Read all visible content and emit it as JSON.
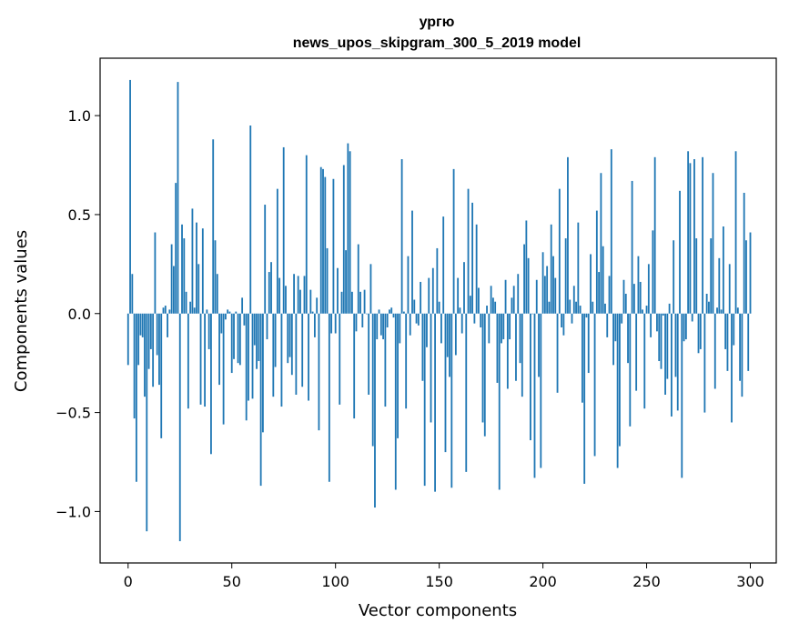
{
  "chart_data": {
    "type": "bar",
    "title": "ургю",
    "subtitle": "news_upos_skipgram_300_5_2019 model",
    "xlabel": "Vector components",
    "ylabel": "Components values",
    "xlim": [
      -13.5,
      312.5
    ],
    "ylim": [
      -1.26,
      1.29
    ],
    "xticks": [
      0,
      50,
      100,
      150,
      200,
      250,
      300
    ],
    "xtick_labels": [
      "0",
      "50",
      "100",
      "150",
      "200",
      "250",
      "300"
    ],
    "yticks": [
      -1.0,
      -0.5,
      0.0,
      0.5,
      1.0
    ],
    "ytick_labels": [
      "−1.0",
      "−0.5",
      "0.0",
      "0.5",
      "1.0"
    ],
    "bar_color": "#1f77b4",
    "grid": false,
    "values": [
      -0.26,
      1.18,
      0.2,
      -0.53,
      -0.85,
      -0.26,
      -0.11,
      -0.12,
      -0.42,
      -1.1,
      -0.28,
      -0.18,
      -0.37,
      0.41,
      -0.21,
      -0.36,
      -0.63,
      0.03,
      0.04,
      -0.12,
      0.02,
      0.35,
      0.24,
      0.66,
      1.17,
      -1.15,
      0.45,
      0.38,
      0.11,
      -0.48,
      0.06,
      0.53,
      0.03,
      0.46,
      0.25,
      -0.46,
      0.43,
      -0.47,
      0.02,
      -0.18,
      -0.71,
      0.88,
      0.37,
      0.2,
      -0.36,
      -0.1,
      -0.56,
      -0.03,
      0.02,
      0.01,
      -0.3,
      -0.23,
      0.01,
      -0.25,
      -0.26,
      0.08,
      -0.06,
      -0.54,
      -0.44,
      0.95,
      -0.43,
      -0.16,
      -0.28,
      -0.24,
      -0.87,
      -0.6,
      0.55,
      -0.13,
      0.21,
      0.26,
      -0.42,
      -0.27,
      0.63,
      0.18,
      -0.47,
      0.84,
      0.14,
      -0.25,
      -0.22,
      -0.31,
      0.2,
      -0.41,
      0.19,
      0.12,
      -0.37,
      0.19,
      0.8,
      -0.44,
      0.12,
      0.01,
      -0.12,
      0.08,
      -0.59,
      0.74,
      0.73,
      0.69,
      0.33,
      -0.85,
      -0.1,
      0.68,
      -0.1,
      0.23,
      -0.46,
      0.11,
      0.75,
      0.32,
      0.86,
      0.82,
      0.11,
      -0.53,
      -0.09,
      0.35,
      0.11,
      -0.07,
      0.12,
      0.0,
      -0.41,
      0.25,
      -0.67,
      -0.98,
      -0.13,
      0.02,
      -0.11,
      -0.13,
      -0.47,
      -0.07,
      0.02,
      0.03,
      -0.02,
      -0.89,
      -0.63,
      -0.15,
      0.78,
      0.01,
      -0.48,
      0.29,
      -0.11,
      0.52,
      0.07,
      -0.05,
      -0.06,
      0.16,
      -0.34,
      -0.87,
      -0.17,
      0.18,
      -0.55,
      0.23,
      -0.9,
      0.33,
      0.06,
      -0.15,
      0.49,
      -0.7,
      -0.22,
      -0.32,
      -0.88,
      0.73,
      -0.21,
      0.18,
      0.03,
      -0.1,
      0.26,
      -0.8,
      0.63,
      0.09,
      0.56,
      -0.05,
      0.45,
      0.13,
      -0.07,
      -0.55,
      -0.62,
      0.04,
      -0.15,
      0.14,
      0.08,
      0.06,
      -0.35,
      -0.89,
      -0.15,
      -0.13,
      0.17,
      -0.38,
      -0.13,
      0.08,
      0.14,
      -0.34,
      0.2,
      -0.25,
      -0.42,
      0.35,
      0.47,
      0.28,
      -0.64,
      0.0,
      -0.83,
      0.17,
      -0.32,
      -0.78,
      0.31,
      0.19,
      0.24,
      0.06,
      0.45,
      0.29,
      0.18,
      -0.4,
      0.63,
      -0.07,
      -0.11,
      0.38,
      0.79,
      0.07,
      -0.05,
      0.14,
      0.06,
      0.46,
      0.04,
      -0.45,
      -0.86,
      -0.02,
      -0.3,
      0.3,
      0.06,
      -0.72,
      0.52,
      0.21,
      0.71,
      0.34,
      0.05,
      -0.12,
      0.19,
      0.83,
      -0.26,
      -0.14,
      -0.78,
      -0.67,
      -0.05,
      0.17,
      0.1,
      -0.25,
      -0.57,
      0.67,
      0.15,
      -0.39,
      0.29,
      0.16,
      0.02,
      -0.48,
      0.04,
      0.25,
      -0.12,
      0.42,
      0.79,
      -0.09,
      -0.24,
      -0.28,
      -0.01,
      -0.41,
      -0.33,
      0.05,
      -0.52,
      0.37,
      -0.32,
      -0.49,
      0.62,
      -0.83,
      -0.14,
      -0.13,
      0.82,
      0.76,
      -0.04,
      0.78,
      0.38,
      -0.2,
      -0.18,
      0.79,
      -0.5,
      0.1,
      0.06,
      0.38,
      0.71,
      -0.38,
      0.03,
      0.28,
      0.02,
      0.44,
      -0.18,
      -0.29,
      0.25,
      -0.55,
      -0.16,
      0.82,
      0.03,
      -0.34,
      -0.42,
      0.61,
      0.37,
      -0.29,
      0.41
    ]
  }
}
